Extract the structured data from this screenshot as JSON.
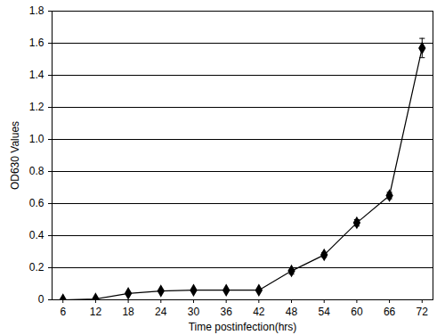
{
  "chart_data": {
    "type": "line",
    "x_label": "Time postinfection(hrs)",
    "y_label": "OD630 Values",
    "x": [
      6,
      12,
      18,
      24,
      30,
      36,
      42,
      48,
      54,
      60,
      66,
      72
    ],
    "values": [
      0,
      0.005,
      0.04,
      0.055,
      0.06,
      0.06,
      0.06,
      0.18,
      0.28,
      0.48,
      0.65,
      1.57
    ],
    "errors": [
      0.003,
      0.003,
      0.005,
      0.005,
      0.005,
      0.005,
      0.005,
      0.02,
      0.015,
      0.02,
      0.02,
      0.06
    ],
    "color": "#000000",
    "marker": "diamond",
    "xlim": [
      4,
      74
    ],
    "xticks": [
      6,
      12,
      18,
      24,
      30,
      36,
      42,
      48,
      54,
      60,
      66,
      72
    ],
    "ylim": [
      0,
      1.8
    ],
    "yticks": [
      0,
      0.2,
      0.4,
      0.6,
      0.8,
      {
        "value": 1,
        "label": "1.0"
      },
      1.2,
      1.4,
      1.6,
      1.8
    ],
    "grid": true
  }
}
